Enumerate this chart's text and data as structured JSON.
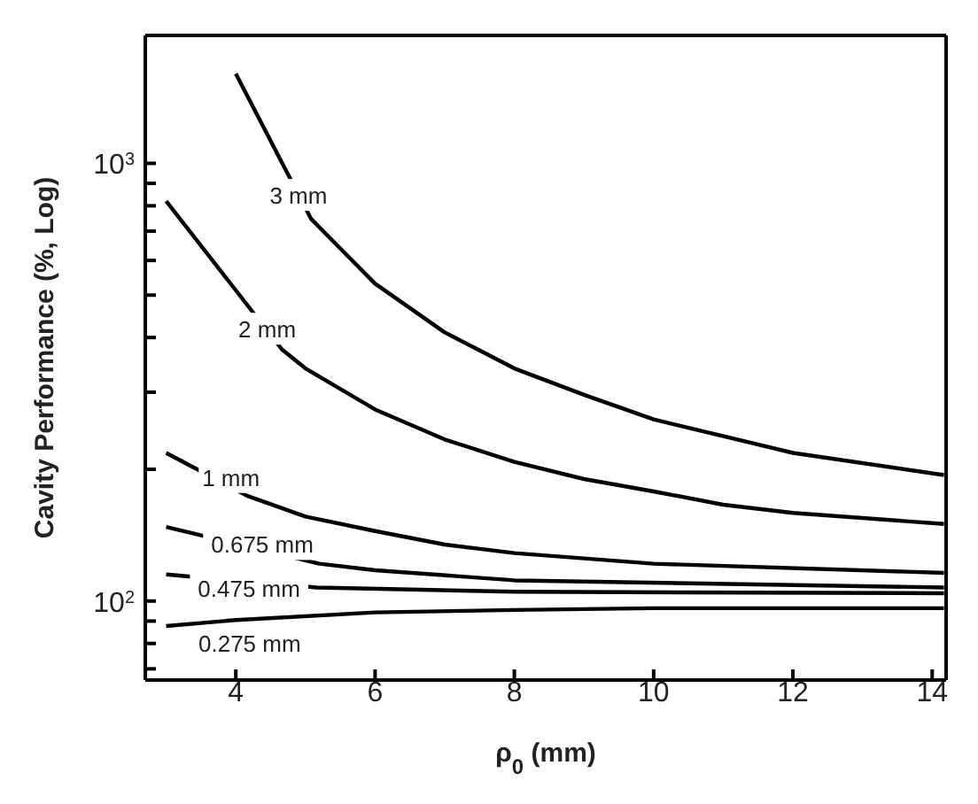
{
  "chart_data": {
    "type": "line",
    "xlabel": "ρ$_{0}$ (mm)",
    "ylabel": "Cavity Performance (%, Log)",
    "log": "y",
    "marker": "none",
    "line_style": "solid",
    "xlim": [
      2.7,
      14.2
    ],
    "xticks": [
      4,
      6,
      8,
      10,
      12,
      14
    ],
    "ylim": [
      66,
      1960
    ],
    "yticks": [
      {
        "value": 70,
        "label": null
      },
      {
        "value": 80,
        "label": null
      },
      {
        "value": 90,
        "label": null
      },
      {
        "value": 100,
        "label": "10$^{2}$"
      },
      {
        "value": 200,
        "label": null
      },
      {
        "value": 300,
        "label": null
      },
      {
        "value": 400,
        "label": null
      },
      {
        "value": 500,
        "label": null
      },
      {
        "value": 600,
        "label": null
      },
      {
        "value": 700,
        "label": null
      },
      {
        "value": 800,
        "label": null
      },
      {
        "value": 900,
        "label": null
      },
      {
        "value": 1000,
        "label": "10$^{3}$"
      }
    ],
    "series": [
      {
        "color": "#000000",
        "x": [
          4,
          5.08,
          6,
          7,
          8,
          9,
          10,
          12,
          14.17
        ],
        "values": [
          1603,
          747,
          531,
          411,
          340,
          296,
          260,
          218,
          194
        ]
      },
      {
        "color": "#000000",
        "x": [
          3,
          4.66,
          5,
          6,
          7,
          8,
          9,
          10,
          11,
          12,
          14.17
        ],
        "values": [
          820,
          376,
          340,
          274,
          234,
          208,
          190,
          178,
          166,
          159,
          150
        ]
      },
      {
        "color": "#000000",
        "x": [
          3,
          4.16,
          5,
          6,
          7,
          8,
          10,
          14.17
        ],
        "values": [
          218,
          174,
          156,
          144.5,
          134.6,
          128.7,
          121.7,
          116
        ]
      },
      {
        "color": "#000000",
        "x": [
          3,
          5.2,
          6,
          8,
          14.17
        ],
        "values": [
          147.6,
          121.7,
          117.6,
          111.5,
          107.4
        ]
      },
      {
        "color": "#000000",
        "x": [
          3,
          5.16,
          8,
          14.17
        ],
        "values": [
          115,
          107.4,
          105,
          104.2
        ]
      },
      {
        "color": "#000000",
        "x": [
          3,
          4,
          6,
          8,
          10,
          14.17
        ],
        "values": [
          87.7,
          90.5,
          94.2,
          95.4,
          96.3,
          96.3
        ]
      }
    ],
    "annotations": [
      {
        "text": "3 mm",
        "x": 4.9,
        "y": 847
      },
      {
        "text": "2 mm",
        "x": 4.45,
        "y": 419
      },
      {
        "text": "1 mm",
        "x": 3.93,
        "y": 192
      },
      {
        "text": "0.675 mm",
        "x": 4.38,
        "y": 135
      },
      {
        "text": "0.475 mm",
        "x": 4.19,
        "y": 107
      },
      "0.275 mm"
    ]
  }
}
